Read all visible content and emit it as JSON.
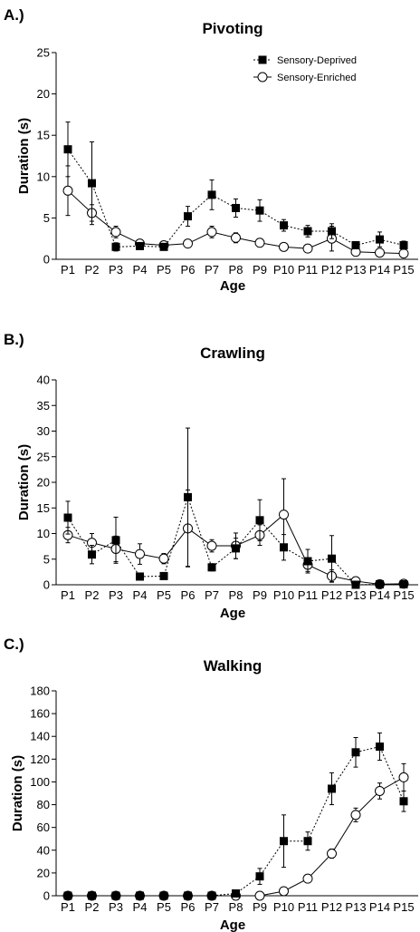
{
  "chart_data": [
    {
      "type": "line",
      "panel_label": "A.)",
      "title": "Pivoting",
      "xlabel": "Age",
      "ylabel": "Duration (s)",
      "categories": [
        "P1",
        "P2",
        "P3",
        "P4",
        "P5",
        "P6",
        "P7",
        "P8",
        "P9",
        "P10",
        "P11",
        "P12",
        "P13",
        "P14",
        "P15"
      ],
      "ylim": [
        0,
        25
      ],
      "yticks": [
        0,
        5,
        10,
        15,
        20,
        25
      ],
      "legend": "top-right",
      "series": [
        {
          "name": "Sensory-Deprived",
          "marker": "filled-square",
          "line": "dotted",
          "values": [
            13.3,
            9.2,
            1.5,
            1.6,
            1.5,
            5.2,
            7.8,
            6.2,
            5.9,
            4.1,
            3.4,
            3.4,
            1.7,
            2.4,
            1.7
          ],
          "errors": [
            3.3,
            5.0,
            0.5,
            0.4,
            0.3,
            1.2,
            1.8,
            1.1,
            1.3,
            0.7,
            0.7,
            0.9,
            0.4,
            0.9,
            0.5
          ]
        },
        {
          "name": "Sensory-Enriched",
          "marker": "open-circle",
          "line": "solid",
          "values": [
            8.3,
            5.6,
            3.3,
            1.9,
            1.7,
            1.9,
            3.3,
            2.6,
            2.0,
            1.5,
            1.3,
            2.5,
            0.9,
            0.8,
            0.7
          ],
          "errors": [
            3.0,
            1.0,
            0.7,
            0.4,
            0.3,
            0.3,
            0.7,
            0.6,
            0.5,
            0.3,
            0.3,
            1.5,
            0.3,
            0.3,
            0.2
          ]
        }
      ]
    },
    {
      "type": "line",
      "panel_label": "B.)",
      "title": "Crawling",
      "xlabel": "Age",
      "ylabel": "Duration (s)",
      "categories": [
        "P1",
        "P2",
        "P3",
        "P4",
        "P5",
        "P6",
        "P7",
        "P8",
        "P9",
        "P10",
        "P11",
        "P12",
        "P13",
        "P14",
        "P15"
      ],
      "ylim": [
        0,
        40
      ],
      "yticks": [
        0,
        5,
        10,
        15,
        20,
        25,
        30,
        35,
        40
      ],
      "series": [
        {
          "name": "Sensory-Deprived",
          "marker": "filled-square",
          "line": "dotted",
          "values": [
            13.1,
            5.9,
            8.7,
            1.6,
            1.7,
            17.1,
            3.4,
            7.1,
            12.6,
            7.3,
            4.6,
            5.1,
            0.0,
            0.1,
            0.1
          ],
          "errors": [
            3.2,
            1.8,
            4.5,
            0.3,
            0.3,
            13.5,
            0.7,
            2.0,
            4.0,
            2.5,
            2.3,
            4.5,
            0.2,
            0.1,
            0.1
          ]
        },
        {
          "name": "Sensory-Enriched",
          "marker": "open-circle",
          "line": "solid",
          "values": [
            9.7,
            8.2,
            7.0,
            6.0,
            5.1,
            11.0,
            7.6,
            7.6,
            9.7,
            13.7,
            3.9,
            1.7,
            0.7,
            0.1,
            0.2
          ],
          "errors": [
            1.5,
            1.8,
            2.5,
            2.0,
            1.0,
            7.5,
            1.2,
            2.5,
            2.0,
            7.0,
            1.3,
            1.2,
            0.5,
            0.1,
            0.1
          ]
        }
      ]
    },
    {
      "type": "line",
      "panel_label": "C.)",
      "title": "Walking",
      "xlabel": "Age",
      "ylabel": "Duration (s)",
      "categories": [
        "P1",
        "P2",
        "P3",
        "P4",
        "P5",
        "P6",
        "P7",
        "P8",
        "P9",
        "P10",
        "P11",
        "P12",
        "P13",
        "P14",
        "P15"
      ],
      "ylim": [
        0,
        180
      ],
      "yticks": [
        0,
        20,
        40,
        60,
        80,
        100,
        120,
        140,
        160,
        180
      ],
      "series": [
        {
          "name": "Sensory-Deprived",
          "marker": "filled-square",
          "line": "dotted",
          "values": [
            0,
            0,
            0,
            0,
            0,
            0,
            0,
            2,
            17,
            48,
            48,
            94,
            126,
            131,
            83
          ],
          "errors": [
            0,
            0,
            0,
            0,
            0,
            0,
            0,
            1,
            7,
            23,
            8,
            14,
            13,
            12,
            9
          ]
        },
        {
          "name": "Sensory-Enriched",
          "marker": "open-circle",
          "line": "solid",
          "values": [
            0,
            0,
            0,
            0,
            0,
            0,
            0,
            0,
            0,
            4,
            15,
            37,
            71,
            92,
            104
          ],
          "errors": [
            0,
            0,
            0,
            0,
            0,
            0,
            0,
            0,
            0,
            1,
            3,
            4,
            6,
            7,
            12
          ]
        }
      ]
    }
  ]
}
